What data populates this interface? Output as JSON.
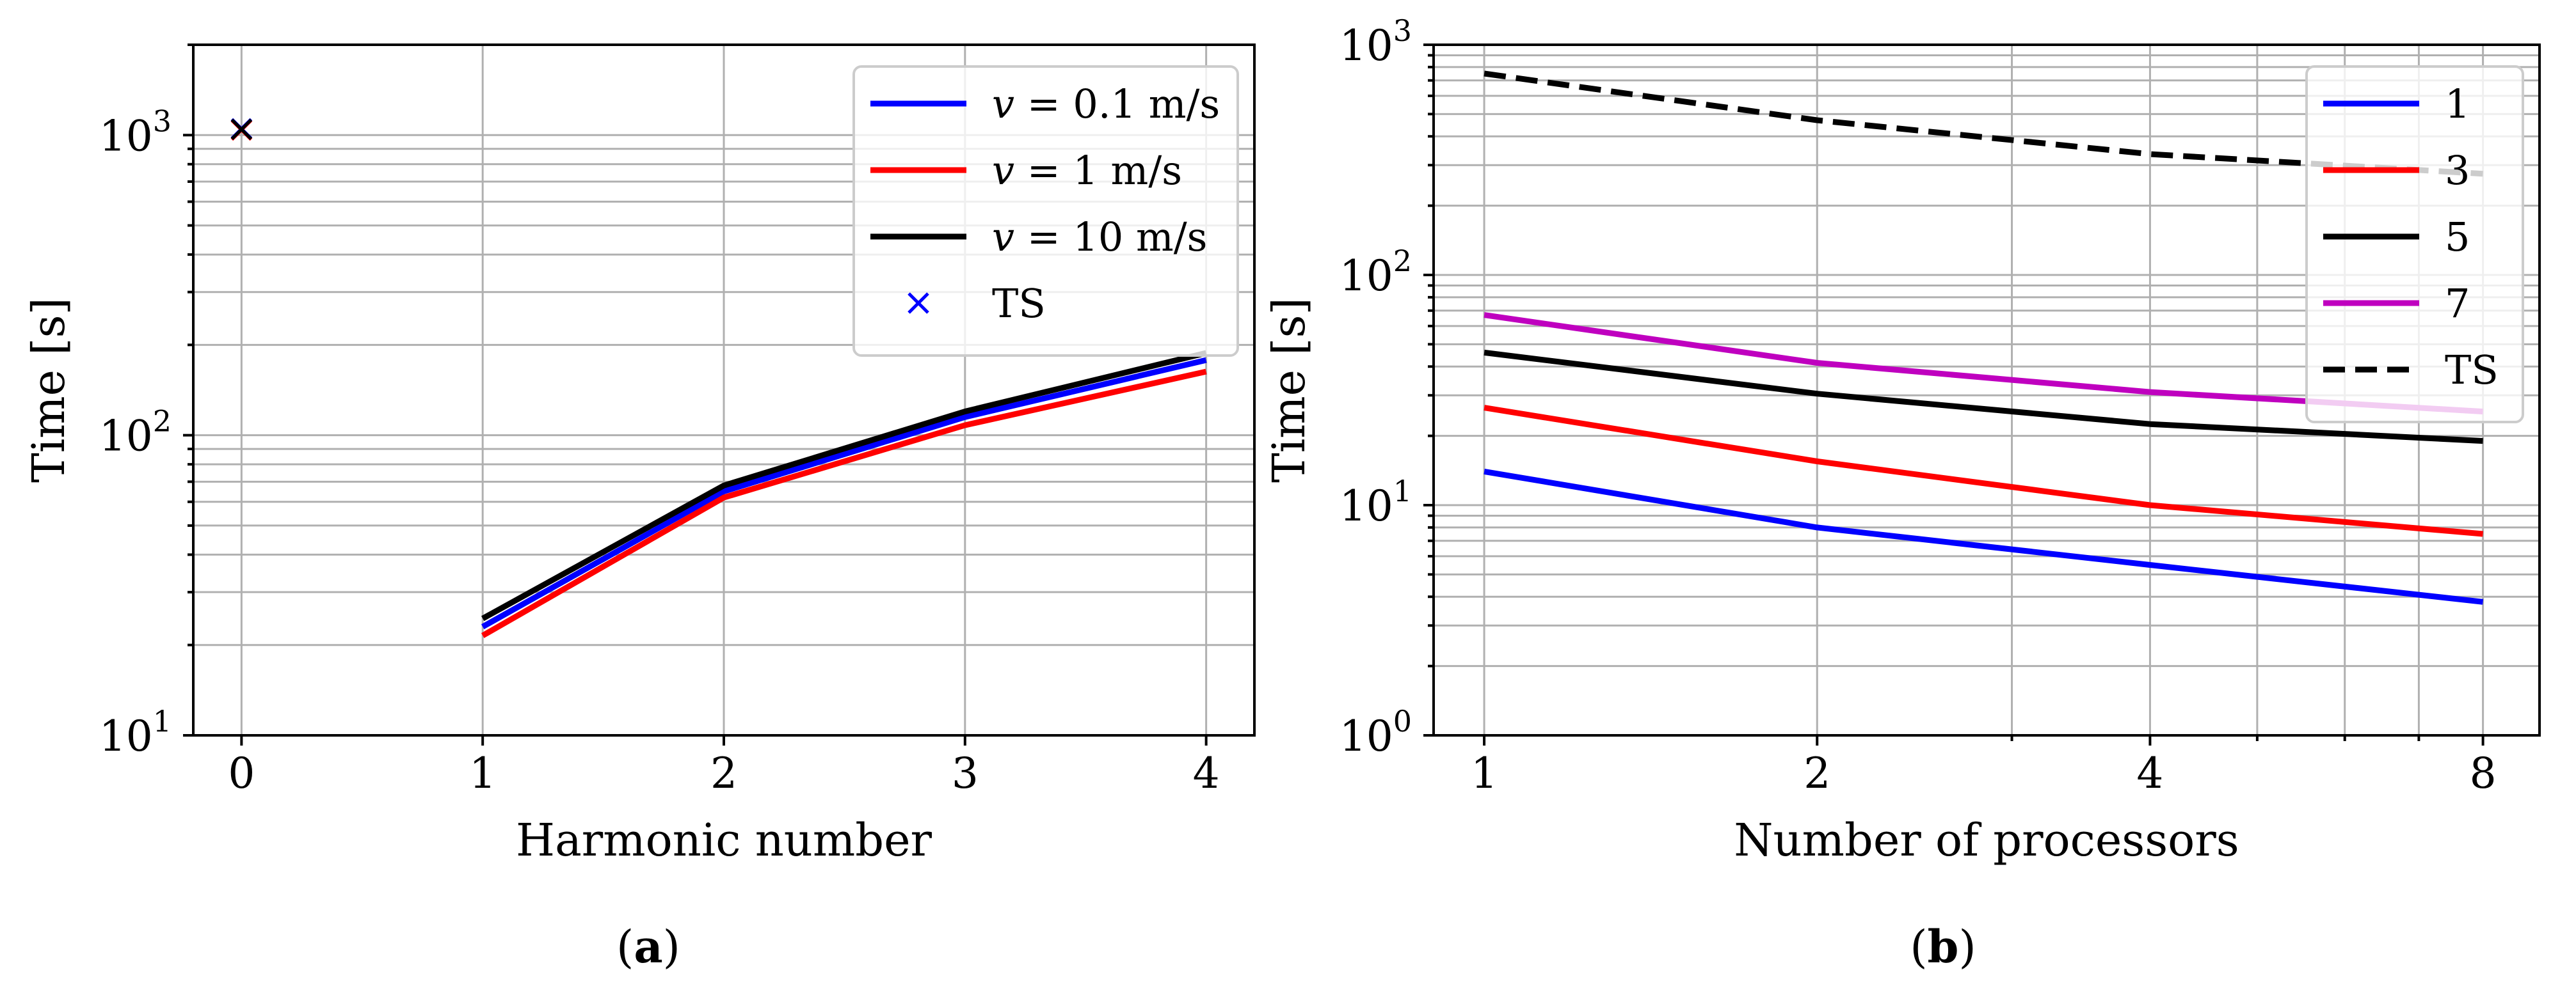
{
  "chart_data": [
    {
      "type": "line",
      "panel": "a",
      "caption": "(a)",
      "caption_letter": "a",
      "xlabel": "Harmonic number",
      "ylabel": "Time [s]",
      "yscale": "log",
      "ylim": [
        10,
        2000
      ],
      "xlim": [
        -0.2,
        4.2
      ],
      "x_ticks": [
        0,
        1,
        2,
        3,
        4
      ],
      "x_tick_labels": [
        "0",
        "1",
        "2",
        "3",
        "4"
      ],
      "y_ticks": [
        10,
        100,
        1000
      ],
      "y_tick_base": "10",
      "y_tick_exponents": [
        "1",
        "2",
        "3"
      ],
      "grid": true,
      "legend_position": "upper-right",
      "series": [
        {
          "name": "v = 0.1 m/s",
          "legend_var": "v",
          "legend_rest": " = 0.1 m/s",
          "color": "#0000ff",
          "x": [
            1,
            2,
            3,
            4
          ],
          "values": [
            23,
            65,
            115,
            178
          ]
        },
        {
          "name": "v = 1 m/s",
          "legend_var": "v",
          "legend_rest": " = 1 m/s",
          "color": "#ff0000",
          "x": [
            1,
            2,
            3,
            4
          ],
          "values": [
            21.5,
            62,
            108,
            163
          ]
        },
        {
          "name": "v = 10 m/s",
          "legend_var": "v",
          "legend_rest": " = 10 m/s",
          "color": "#000000",
          "x": [
            1,
            2,
            3,
            4
          ],
          "values": [
            24.5,
            68,
            120,
            188
          ]
        }
      ],
      "markers": [
        {
          "name": "TS",
          "color": "#0000ff",
          "symbol": "×",
          "points": [
            {
              "x": 0,
              "y": 1050,
              "color": "#0000ff"
            },
            {
              "x": 0,
              "y": 1040,
              "color": "#ff0000"
            },
            {
              "x": 0,
              "y": 1045,
              "color": "#000000"
            }
          ]
        }
      ]
    },
    {
      "type": "line",
      "panel": "b",
      "caption": "(b)",
      "caption_letter": "b",
      "xlabel": "Number of processors",
      "ylabel": "Time [s]",
      "xscale": "log2",
      "yscale": "log",
      "ylim": [
        1,
        1000
      ],
      "xlim": [
        0.9,
        9.0
      ],
      "x_ticks": [
        1,
        2,
        4,
        8
      ],
      "x_tick_labels": [
        "1",
        "2",
        "4",
        "8"
      ],
      "y_ticks": [
        1,
        10,
        100,
        1000
      ],
      "y_tick_base": "10",
      "y_tick_exponents": [
        "0",
        "1",
        "2",
        "3"
      ],
      "grid": true,
      "legend_position": "upper-right",
      "series": [
        {
          "name": "1",
          "color": "#0000ff",
          "dash": "",
          "x": [
            1,
            2,
            4,
            8
          ],
          "values": [
            14,
            8,
            5.5,
            3.8
          ]
        },
        {
          "name": "3",
          "color": "#ff0000",
          "dash": "",
          "x": [
            1,
            2,
            4,
            8
          ],
          "values": [
            26.5,
            15.5,
            10,
            7.5
          ]
        },
        {
          "name": "5",
          "color": "#000000",
          "dash": "",
          "x": [
            1,
            2,
            4,
            8
          ],
          "values": [
            46,
            30.5,
            22.5,
            19
          ]
        },
        {
          "name": "7",
          "color": "#bf00bf",
          "dash": "",
          "x": [
            1,
            2,
            4,
            8
          ],
          "values": [
            67,
            41.5,
            31,
            25.5
          ]
        },
        {
          "name": "TS",
          "color": "#000000",
          "dash": "dashed",
          "x": [
            1,
            2,
            4,
            8
          ],
          "values": [
            750,
            470,
            335,
            275
          ]
        }
      ]
    }
  ]
}
